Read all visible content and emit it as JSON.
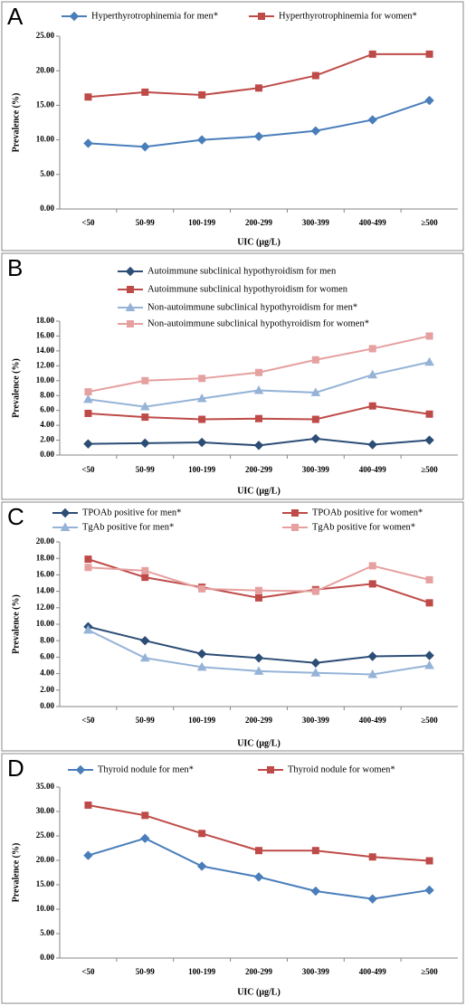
{
  "chart_data": [
    {
      "type": "line",
      "panel_label": "A",
      "x_label": "UIC (μg/L)",
      "y_label": "Prevalence (%)",
      "categories": [
        "<50",
        "50-99",
        "100-199",
        "200-299",
        "300-399",
        "400-499",
        "≥500"
      ],
      "ylim": [
        0,
        25
      ],
      "yticks": [
        {
          "value": 0,
          "label": "0.00"
        },
        {
          "value": 5,
          "label": "5.00"
        },
        {
          "value": 10,
          "label": "10.00"
        },
        {
          "value": 15,
          "label": "15.00"
        },
        {
          "value": 20,
          "label": "20.00"
        },
        {
          "value": 25,
          "label": "25.00"
        }
      ],
      "series": [
        {
          "name": "Hyperthyrotrophinemia for men*",
          "color": "#4a7ebb",
          "marker": "diamond",
          "values": [
            9.5,
            9.0,
            10.0,
            10.5,
            11.3,
            12.9,
            15.7
          ]
        },
        {
          "name": "Hyperthyrotrophinemia for women*",
          "color": "#be4b48",
          "marker": "square",
          "values": [
            16.2,
            16.9,
            16.5,
            17.5,
            19.3,
            22.4,
            22.4
          ]
        }
      ]
    },
    {
      "type": "line",
      "panel_label": "B",
      "x_label": "UIC (μg/L)",
      "y_label": "Prevalence (%)",
      "categories": [
        "<50",
        "50-99",
        "100-199",
        "200-299",
        "300-399",
        "400-499",
        "≥500"
      ],
      "ylim": [
        0,
        18
      ],
      "yticks": [
        {
          "value": 0,
          "label": "0.00"
        },
        {
          "value": 2,
          "label": "2.00"
        },
        {
          "value": 4,
          "label": "4.00"
        },
        {
          "value": 6,
          "label": "6.00"
        },
        {
          "value": 8,
          "label": "8.00"
        },
        {
          "value": 10,
          "label": "10.00"
        },
        {
          "value": 12,
          "label": "12.00"
        },
        {
          "value": 14,
          "label": "14.00"
        },
        {
          "value": 16,
          "label": "16.00"
        },
        {
          "value": 18,
          "label": "18.00"
        }
      ],
      "series": [
        {
          "name": "Autoimmune subclinical hypothyroidism for men",
          "color": "#2c4d75",
          "marker": "diamond",
          "values": [
            1.5,
            1.6,
            1.7,
            1.3,
            2.2,
            1.4,
            2.0
          ]
        },
        {
          "name": "Autoimmune subclinical hypothyroidism for women",
          "color": "#be4b48",
          "marker": "square",
          "values": [
            5.6,
            5.1,
            4.8,
            4.9,
            4.8,
            6.6,
            5.5
          ]
        },
        {
          "name": "Non-autoimmune subclinical hypothyroidism for men*",
          "color": "#95b3d7",
          "marker": "triangle",
          "values": [
            7.5,
            6.5,
            7.6,
            8.7,
            8.4,
            10.8,
            12.5
          ]
        },
        {
          "name": "Non-autoimmune subclinical hypothyroidism for women*",
          "color": "#e6a0a0",
          "marker": "square",
          "values": [
            8.5,
            10.0,
            10.3,
            11.1,
            12.8,
            14.3,
            16.0
          ]
        }
      ]
    },
    {
      "type": "line",
      "panel_label": "C",
      "x_label": "UIC (μg/L)",
      "y_label": "Prevalence (%)",
      "categories": [
        "<50",
        "50-99",
        "100-199",
        "200-299",
        "300-399",
        "400-499",
        "≥500"
      ],
      "ylim": [
        0,
        20
      ],
      "yticks": [
        {
          "value": 0,
          "label": "0.00"
        },
        {
          "value": 2,
          "label": "2.00"
        },
        {
          "value": 4,
          "label": "4.00"
        },
        {
          "value": 6,
          "label": "6.00"
        },
        {
          "value": 8,
          "label": "8.00"
        },
        {
          "value": 10,
          "label": "10.00"
        },
        {
          "value": 12,
          "label": "12.00"
        },
        {
          "value": 14,
          "label": "14.00"
        },
        {
          "value": 16,
          "label": "16.00"
        },
        {
          "value": 18,
          "label": "18.00"
        },
        {
          "value": 20,
          "label": "20.00"
        }
      ],
      "series": [
        {
          "name": "TPOAb positive for men*",
          "color": "#2c4d75",
          "marker": "diamond",
          "values": [
            9.7,
            8.0,
            6.4,
            5.9,
            5.3,
            6.1,
            6.2
          ]
        },
        {
          "name": "TPOAb positive for women*",
          "color": "#be4b48",
          "marker": "square",
          "values": [
            17.9,
            15.7,
            14.5,
            13.2,
            14.2,
            14.9,
            12.6
          ]
        },
        {
          "name": "TgAb positive for men*",
          "color": "#95b3d7",
          "marker": "triangle",
          "values": [
            9.3,
            5.9,
            4.8,
            4.3,
            4.1,
            3.9,
            5.0
          ]
        },
        {
          "name": "TgAb positive for women*",
          "color": "#e6a0a0",
          "marker": "square",
          "values": [
            16.9,
            16.5,
            14.3,
            14.1,
            14.0,
            17.1,
            15.4
          ]
        }
      ]
    },
    {
      "type": "line",
      "panel_label": "D",
      "x_label": "UIC (μg/L)",
      "y_label": "Prevalence (%)",
      "categories": [
        "<50",
        "50-99",
        "100-199",
        "200-299",
        "300-399",
        "400-499",
        "≥500"
      ],
      "ylim": [
        0,
        35
      ],
      "yticks": [
        {
          "value": 0,
          "label": "0.00"
        },
        {
          "value": 5,
          "label": "5.00"
        },
        {
          "value": 10,
          "label": "10.00"
        },
        {
          "value": 15,
          "label": "15.00"
        },
        {
          "value": 20,
          "label": "20.00"
        },
        {
          "value": 25,
          "label": "25.00"
        },
        {
          "value": 30,
          "label": "30.00"
        },
        {
          "value": 35,
          "label": "35.00"
        }
      ],
      "series": [
        {
          "name": "Thyroid nodule for men*",
          "color": "#4a7ebb",
          "marker": "diamond",
          "values": [
            21.0,
            24.5,
            18.8,
            16.6,
            13.7,
            12.1,
            13.9
          ]
        },
        {
          "name": "Thyroid nodule for women*",
          "color": "#be4b48",
          "marker": "square",
          "values": [
            31.3,
            29.2,
            25.5,
            22.0,
            22.0,
            20.7,
            19.9
          ]
        }
      ]
    }
  ]
}
